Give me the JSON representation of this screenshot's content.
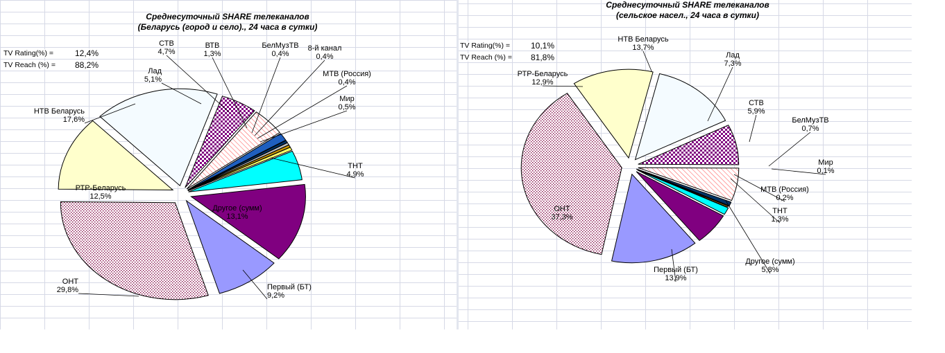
{
  "chart_data": [
    {
      "type": "pie",
      "title": "Среднесуточный  SHARE телеканалов",
      "subtitle": "(Беларусь  (город и село)., 24 часа в сутки)",
      "stats": [
        {
          "label": "TV Rating(%) =",
          "value": "12,4%"
        },
        {
          "label": "TV Reach (%) =",
          "value": "88,2%"
        }
      ],
      "slices": [
        {
          "label": "Первый (БТ)",
          "value_text": "9,2%",
          "value": 9.2,
          "fill": "#9999ff",
          "pattern": "solid"
        },
        {
          "label": "ОНТ",
          "value_text": "29,8%",
          "value": 29.8,
          "fill": "#ffffff",
          "pattern": "dots-maroon"
        },
        {
          "label": "РТР-Беларусь",
          "value_text": "12,5%",
          "value": 12.5,
          "fill": "#ffffcc",
          "pattern": "solid"
        },
        {
          "label": "НТВ Беларусь",
          "value_text": "17,6%",
          "value": 17.6,
          "fill": "#f4fbff",
          "pattern": "solid"
        },
        {
          "label": "Лад",
          "value_text": "5,1%",
          "value": 5.1,
          "fill": "#ffffff",
          "pattern": "checker-purple"
        },
        {
          "label": "СТВ",
          "value_text": "4,7%",
          "value": 4.7,
          "fill": "#ffffff",
          "pattern": "hatch-red"
        },
        {
          "label": "ВТВ",
          "value_text": "1,3%",
          "value": 1.3,
          "fill": "#1f5fbf",
          "pattern": "solid"
        },
        {
          "label": "БелМузТВ",
          "value_text": "0,4%",
          "value": 0.4,
          "fill": "#003366",
          "pattern": "solid"
        },
        {
          "label": "8-й канал",
          "value_text": "0,4%",
          "value": 0.4,
          "fill": "#c0c0c0",
          "pattern": "solid"
        },
        {
          "label": "МТВ (Россия)",
          "value_text": "0,4%",
          "value": 0.4,
          "fill": "#cc9900",
          "pattern": "solid"
        },
        {
          "label": "Мир",
          "value_text": "0,5%",
          "value": 0.5,
          "fill": "#ffff66",
          "pattern": "solid"
        },
        {
          "label": "ТНТ",
          "value_text": "4,9%",
          "value": 4.9,
          "fill": "#00ffff",
          "pattern": "solid"
        },
        {
          "label": "Другое (сумм)",
          "value_text": "13,1%",
          "value": 13.1,
          "fill": "#800080",
          "pattern": "solid"
        }
      ]
    },
    {
      "type": "pie",
      "title": "Среднесуточный  SHARE телеканалов",
      "subtitle": "(сельское насел., 24 часа в сутки)",
      "stats": [
        {
          "label": "TV Rating(%) =",
          "value": "10,1%"
        },
        {
          "label": "TV Reach (%) =",
          "value": "81,8%"
        }
      ],
      "slices": [
        {
          "label": "НТВ Беларусь",
          "value_text": "13,7%",
          "value": 13.7,
          "fill": "#f4fbff",
          "pattern": "solid"
        },
        {
          "label": "Лад",
          "value_text": "7,3%",
          "value": 7.3,
          "fill": "#ffffff",
          "pattern": "checker-purple"
        },
        {
          "label": "СТВ",
          "value_text": "5,9%",
          "value": 5.9,
          "fill": "#ffffff",
          "pattern": "hatch-red"
        },
        {
          "label": "БелМузТВ",
          "value_text": "0,7%",
          "value": 0.7,
          "fill": "#003366",
          "pattern": "solid"
        },
        {
          "label": "Мир",
          "value_text": "0,1%",
          "value": 0.1,
          "fill": "#ffff66",
          "pattern": "solid"
        },
        {
          "label": "МТВ (Россия)",
          "value_text": "0,2%",
          "value": 0.2,
          "fill": "#cc9900",
          "pattern": "solid"
        },
        {
          "label": "ТНТ",
          "value_text": "1,3%",
          "value": 1.3,
          "fill": "#00ffff",
          "pattern": "solid"
        },
        {
          "label": "Другое (сумм)",
          "value_text": "5,8%",
          "value": 5.8,
          "fill": "#800080",
          "pattern": "solid"
        },
        {
          "label": "Первый (БТ)",
          "value_text": "13,9%",
          "value": 13.9,
          "fill": "#9999ff",
          "pattern": "solid"
        },
        {
          "label": "ОНТ",
          "value_text": "37,3%",
          "value": 37.3,
          "fill": "#ffffff",
          "pattern": "dots-maroon"
        },
        {
          "label": "РТР-Беларусь",
          "value_text": "12,9%",
          "value": 12.9,
          "fill": "#ffffcc",
          "pattern": "solid"
        }
      ]
    }
  ]
}
